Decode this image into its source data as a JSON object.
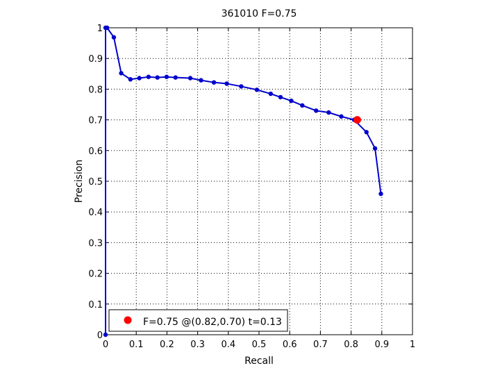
{
  "chart_data": {
    "type": "line",
    "title": "361010 F=0.75",
    "xlabel": "Recall",
    "ylabel": "Precision",
    "xlim": [
      0,
      1
    ],
    "ylim": [
      0,
      1
    ],
    "xticks": [
      "0",
      "0.1",
      "0.2",
      "0.3",
      "0.4",
      "0.5",
      "0.6",
      "0.7",
      "0.8",
      "0.9",
      "1"
    ],
    "yticks": [
      "0",
      "0.1",
      "0.2",
      "0.3",
      "0.4",
      "0.5",
      "0.6",
      "0.7",
      "0.8",
      "0.9",
      "1"
    ],
    "grid": true,
    "series": [
      {
        "color": "#0000cc",
        "points": [
          [
            0.0,
            0.0
          ],
          [
            0.0,
            1.0
          ],
          [
            0.005,
            1.0
          ],
          [
            0.027,
            0.969
          ],
          [
            0.051,
            0.852
          ],
          [
            0.081,
            0.832
          ],
          [
            0.11,
            0.836
          ],
          [
            0.14,
            0.84
          ],
          [
            0.169,
            0.838
          ],
          [
            0.199,
            0.84
          ],
          [
            0.228,
            0.838
          ],
          [
            0.276,
            0.836
          ],
          [
            0.311,
            0.829
          ],
          [
            0.353,
            0.822
          ],
          [
            0.395,
            0.818
          ],
          [
            0.442,
            0.809
          ],
          [
            0.493,
            0.798
          ],
          [
            0.538,
            0.785
          ],
          [
            0.57,
            0.774
          ],
          [
            0.605,
            0.762
          ],
          [
            0.641,
            0.747
          ],
          [
            0.686,
            0.73
          ],
          [
            0.727,
            0.724
          ],
          [
            0.768,
            0.711
          ],
          [
            0.81,
            0.7
          ],
          [
            0.85,
            0.66
          ],
          [
            0.878,
            0.607
          ],
          [
            0.897,
            0.459
          ]
        ]
      }
    ],
    "highlight": {
      "recall": 0.82,
      "precision": 0.7,
      "color": "#ff0000"
    },
    "legend": {
      "text": "F=0.75 @(0.82,0.70) t=0.13",
      "position": "bottom-left"
    }
  }
}
